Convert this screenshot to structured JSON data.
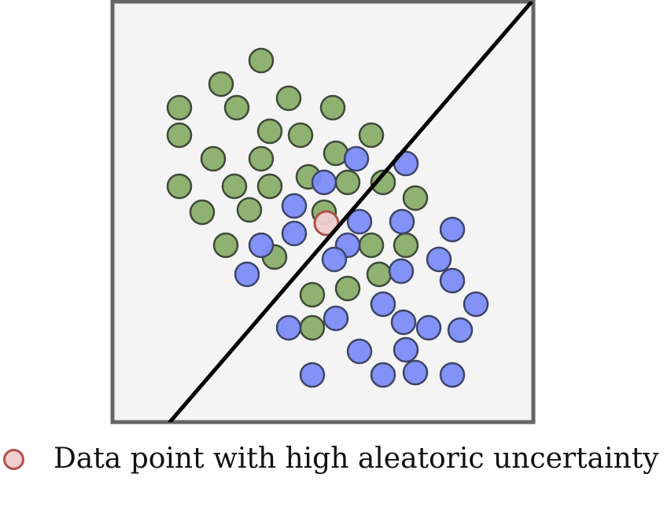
{
  "legend": {
    "label": "Data point with high aleatoric uncertainty"
  },
  "colors": {
    "frame": "#666666",
    "panel": "#f4f4f4",
    "class_a": "#89ae6a",
    "class_b": "#7b8cf5",
    "highlight_fill": "#efcfcd",
    "highlight_stroke": "#b0504d",
    "boundary": "#000000"
  },
  "points": {
    "class_a": [
      [
        332,
        77
      ],
      [
        281,
        107
      ],
      [
        228,
        137
      ],
      [
        301,
        137
      ],
      [
        367,
        125
      ],
      [
        423,
        137
      ],
      [
        228,
        172
      ],
      [
        343,
        167
      ],
      [
        382,
        172
      ],
      [
        472,
        172
      ],
      [
        271,
        202
      ],
      [
        332,
        202
      ],
      [
        427,
        195
      ],
      [
        228,
        237
      ],
      [
        298,
        237
      ],
      [
        343,
        237
      ],
      [
        392,
        225
      ],
      [
        442,
        232
      ],
      [
        487,
        232
      ],
      [
        528,
        252
      ],
      [
        257,
        270
      ],
      [
        317,
        267
      ],
      [
        412,
        270
      ],
      [
        287,
        312
      ],
      [
        349,
        327
      ],
      [
        472,
        312
      ],
      [
        516,
        312
      ],
      [
        482,
        349
      ],
      [
        442,
        367
      ],
      [
        397,
        375
      ],
      [
        397,
        417
      ]
    ],
    "class_b": [
      [
        453,
        202
      ],
      [
        516,
        208
      ],
      [
        412,
        232
      ],
      [
        374,
        262
      ],
      [
        511,
        282
      ],
      [
        457,
        282
      ],
      [
        575,
        292
      ],
      [
        374,
        297
      ],
      [
        332,
        312
      ],
      [
        442,
        312
      ],
      [
        425,
        330
      ],
      [
        558,
        330
      ],
      [
        314,
        349
      ],
      [
        510,
        345
      ],
      [
        575,
        357
      ],
      [
        487,
        387
      ],
      [
        605,
        387
      ],
      [
        367,
        417
      ],
      [
        427,
        405
      ],
      [
        513,
        410
      ],
      [
        545,
        417
      ],
      [
        585,
        420
      ],
      [
        457,
        447
      ],
      [
        516,
        445
      ],
      [
        397,
        477
      ],
      [
        487,
        477
      ],
      [
        528,
        474
      ],
      [
        575,
        477
      ]
    ],
    "highlight": [
      [
        415,
        284
      ]
    ]
  },
  "boundary_line": [
    [
      215,
      538
    ],
    [
      676,
      2
    ]
  ]
}
